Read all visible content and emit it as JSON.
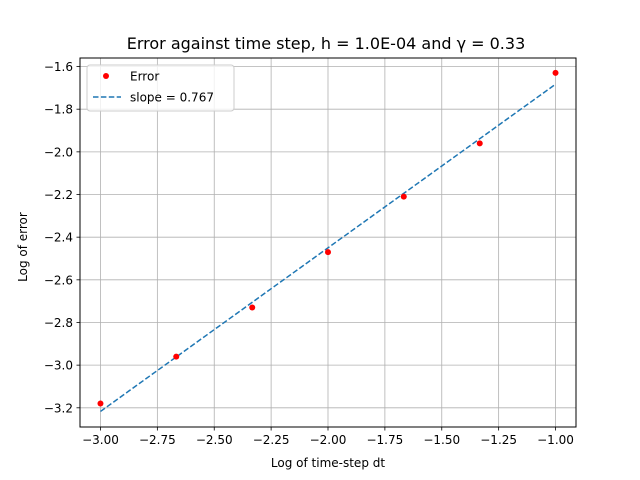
{
  "chart_data": {
    "type": "scatter",
    "title": "Error against time step, h = 1.0E-04 and γ = 0.33",
    "xlabel": "Log of time-step dt",
    "ylabel": "Log of error",
    "xlim": [
      -3.09,
      -0.91
    ],
    "ylim": [
      -3.29,
      -1.56
    ],
    "grid": true,
    "legend_position": "top-left",
    "x_ticks": [
      -3.0,
      -2.75,
      -2.5,
      -2.25,
      -2.0,
      -1.75,
      -1.5,
      -1.25,
      -1.0
    ],
    "x_tick_labels": [
      "−3.00",
      "−2.75",
      "−2.50",
      "−2.25",
      "−2.00",
      "−1.75",
      "−1.50",
      "−1.25",
      "−1.00"
    ],
    "y_ticks": [
      -3.2,
      -3.0,
      -2.8,
      -2.6,
      -2.4,
      -2.2,
      -2.0,
      -1.8,
      -1.6
    ],
    "y_tick_labels": [
      "−3.2",
      "−3.0",
      "−2.8",
      "−2.6",
      "−2.4",
      "−2.2",
      "−2.0",
      "−1.8",
      "−1.6"
    ],
    "series": [
      {
        "name": "Error",
        "kind": "points",
        "color": "#ff0000",
        "x": [
          -3.0,
          -2.667,
          -2.333,
          -2.0,
          -1.667,
          -1.333,
          -1.0
        ],
        "y": [
          -3.18,
          -2.96,
          -2.73,
          -2.47,
          -2.21,
          -1.96,
          -1.63
        ]
      },
      {
        "name": "slope = 0.767",
        "kind": "dashed-line",
        "color": "#1f77b4",
        "x": [
          -3.0,
          -1.0
        ],
        "y": [
          -3.217,
          -1.683
        ]
      }
    ]
  }
}
